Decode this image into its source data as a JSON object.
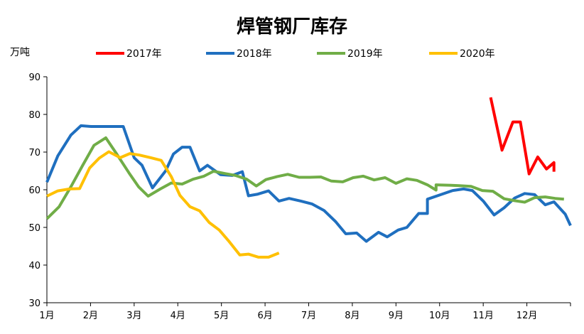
{
  "chart_data": {
    "type": "line",
    "title": "焊管钢厂库存",
    "ylabel": "万吨",
    "xlabel": "",
    "ylim": [
      30,
      90
    ],
    "yticks": [
      "30",
      "40",
      "50",
      "60",
      "70",
      "80",
      "90"
    ],
    "xlim": [
      1,
      13
    ],
    "month_labels": [
      "1月",
      "2月",
      "3月",
      "4月",
      "5月",
      "6月",
      "7月",
      "8月",
      "9月",
      "10月",
      "11月",
      "12月"
    ],
    "grid": false,
    "legend_position": "top",
    "series": [
      {
        "name": "2017年",
        "color": "#ff0000",
        "points": [
          [
            11.17,
            84.5
          ],
          [
            11.43,
            70.5
          ],
          [
            11.68,
            78.0
          ],
          [
            11.85,
            78.0
          ],
          [
            12.05,
            64.2
          ],
          [
            12.25,
            68.7
          ],
          [
            12.45,
            65.5
          ],
          [
            12.62,
            67.2
          ],
          [
            12.62,
            64.8
          ]
        ]
      },
      {
        "name": "2018年",
        "color": "#1f6fbf",
        "points": [
          [
            1.0,
            62.0
          ],
          [
            1.25,
            69.0
          ],
          [
            1.55,
            74.5
          ],
          [
            1.78,
            77.0
          ],
          [
            2.02,
            76.8
          ],
          [
            2.3,
            76.8
          ],
          [
            2.62,
            76.8
          ],
          [
            2.75,
            76.8
          ],
          [
            3.0,
            68.5
          ],
          [
            3.18,
            66.5
          ],
          [
            3.42,
            60.5
          ],
          [
            3.72,
            65.0
          ],
          [
            3.9,
            69.5
          ],
          [
            4.1,
            71.3
          ],
          [
            4.28,
            71.3
          ],
          [
            4.5,
            65.0
          ],
          [
            4.68,
            66.5
          ],
          [
            4.98,
            64.0
          ],
          [
            5.25,
            63.8
          ],
          [
            5.48,
            64.8
          ],
          [
            5.62,
            58.4
          ],
          [
            5.82,
            58.8
          ],
          [
            6.08,
            59.7
          ],
          [
            6.32,
            57.0
          ],
          [
            6.55,
            57.7
          ],
          [
            6.82,
            57.0
          ],
          [
            7.08,
            56.2
          ],
          [
            7.35,
            54.5
          ],
          [
            7.62,
            51.5
          ],
          [
            7.85,
            48.3
          ],
          [
            8.1,
            48.5
          ],
          [
            8.32,
            46.3
          ],
          [
            8.6,
            48.7
          ],
          [
            8.8,
            47.5
          ],
          [
            9.05,
            49.3
          ],
          [
            9.25,
            50.0
          ],
          [
            9.52,
            53.7
          ],
          [
            9.72,
            53.7
          ],
          [
            9.72,
            57.5
          ],
          [
            10.05,
            58.8
          ],
          [
            10.3,
            59.8
          ],
          [
            10.55,
            60.2
          ],
          [
            10.75,
            59.8
          ],
          [
            11.0,
            57.0
          ],
          [
            11.25,
            53.3
          ],
          [
            11.48,
            55.2
          ],
          [
            11.72,
            57.8
          ],
          [
            11.95,
            59.0
          ],
          [
            12.18,
            58.7
          ],
          [
            12.42,
            56.0
          ],
          [
            12.62,
            56.8
          ],
          [
            12.88,
            53.5
          ],
          [
            13.0,
            50.5
          ]
        ]
      },
      {
        "name": "2019年",
        "color": "#70ad47",
        "points": [
          [
            1.0,
            52.3
          ],
          [
            1.28,
            55.5
          ],
          [
            1.55,
            60.8
          ],
          [
            1.82,
            66.5
          ],
          [
            2.08,
            71.8
          ],
          [
            2.35,
            73.8
          ],
          [
            2.6,
            69.5
          ],
          [
            2.88,
            64.5
          ],
          [
            3.1,
            60.8
          ],
          [
            3.32,
            58.3
          ],
          [
            3.6,
            60.2
          ],
          [
            3.85,
            61.8
          ],
          [
            4.1,
            61.5
          ],
          [
            4.35,
            62.8
          ],
          [
            4.6,
            63.6
          ],
          [
            4.82,
            64.9
          ],
          [
            5.08,
            64.3
          ],
          [
            5.32,
            63.8
          ],
          [
            5.58,
            62.8
          ],
          [
            5.8,
            61.0
          ],
          [
            6.02,
            62.7
          ],
          [
            6.28,
            63.5
          ],
          [
            6.52,
            64.1
          ],
          [
            6.78,
            63.3
          ],
          [
            7.02,
            63.3
          ],
          [
            7.28,
            63.4
          ],
          [
            7.52,
            62.3
          ],
          [
            7.78,
            62.1
          ],
          [
            8.02,
            63.2
          ],
          [
            8.25,
            63.6
          ],
          [
            8.5,
            62.6
          ],
          [
            8.75,
            63.2
          ],
          [
            9.0,
            61.7
          ],
          [
            9.25,
            62.9
          ],
          [
            9.48,
            62.5
          ],
          [
            9.72,
            61.3
          ],
          [
            9.92,
            59.9
          ],
          [
            9.92,
            61.3
          ],
          [
            10.2,
            61.2
          ],
          [
            10.45,
            61.1
          ],
          [
            10.72,
            60.9
          ],
          [
            10.98,
            59.8
          ],
          [
            11.22,
            59.6
          ],
          [
            11.48,
            57.6
          ],
          [
            11.72,
            57.1
          ],
          [
            11.95,
            56.7
          ],
          [
            12.18,
            57.9
          ],
          [
            12.42,
            58.1
          ],
          [
            12.65,
            57.7
          ],
          [
            12.85,
            57.5
          ]
        ]
      },
      {
        "name": "2020年",
        "color": "#ffc000",
        "points": [
          [
            1.0,
            58.3
          ],
          [
            1.25,
            59.7
          ],
          [
            1.52,
            60.2
          ],
          [
            1.75,
            60.3
          ],
          [
            1.98,
            65.8
          ],
          [
            2.2,
            68.4
          ],
          [
            2.42,
            70.1
          ],
          [
            2.68,
            68.5
          ],
          [
            2.9,
            69.6
          ],
          [
            3.12,
            69.2
          ],
          [
            3.38,
            68.5
          ],
          [
            3.62,
            67.8
          ],
          [
            3.85,
            63.5
          ],
          [
            4.05,
            58.5
          ],
          [
            4.28,
            55.5
          ],
          [
            4.5,
            54.4
          ],
          [
            4.72,
            51.3
          ],
          [
            4.95,
            49.3
          ],
          [
            5.18,
            46.2
          ],
          [
            5.42,
            42.7
          ],
          [
            5.62,
            42.9
          ],
          [
            5.85,
            42.1
          ],
          [
            6.08,
            42.1
          ],
          [
            6.32,
            43.2
          ]
        ]
      }
    ]
  }
}
